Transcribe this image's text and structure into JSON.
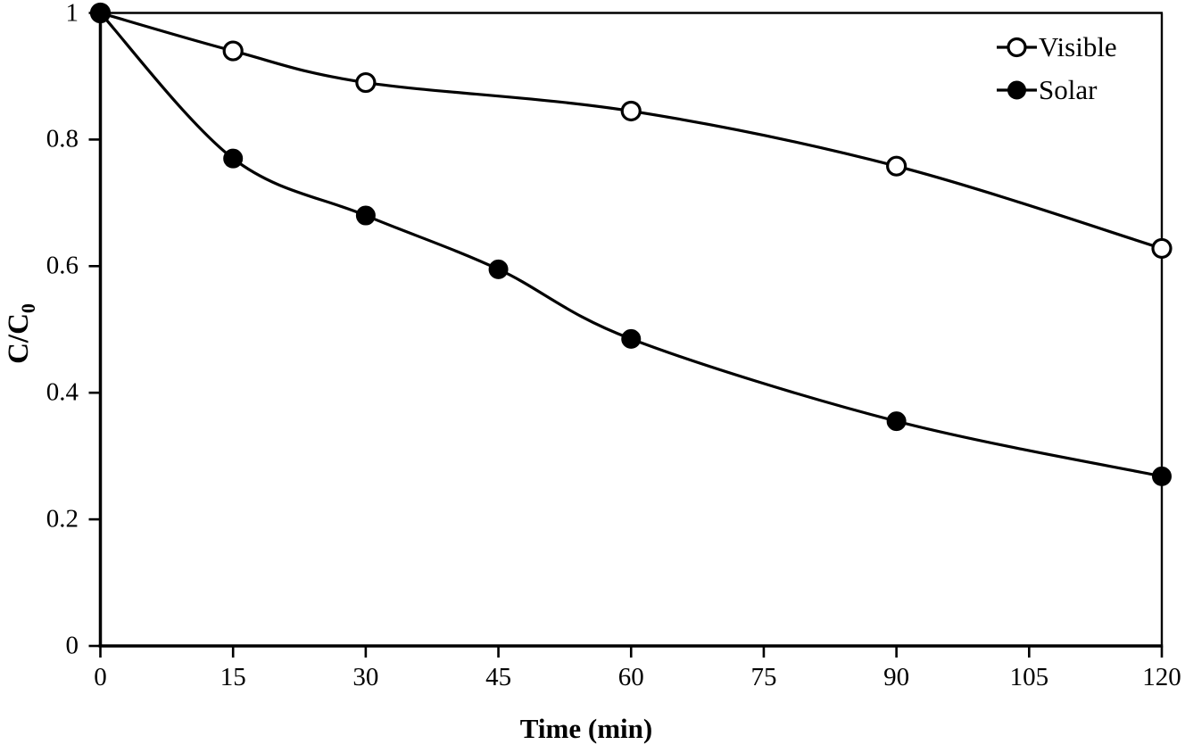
{
  "figure": {
    "background_color": "#ffffff",
    "line_color": "#000000",
    "text_color": "#000000"
  },
  "chart_data": {
    "type": "line",
    "title": "",
    "xlabel": "Time (min)",
    "ylabel": "C/C",
    "ylabel_subscript": "0",
    "xlim": [
      0,
      120
    ],
    "ylim": [
      0,
      1
    ],
    "x_ticks": [
      0,
      15,
      30,
      45,
      60,
      75,
      90,
      105,
      120
    ],
    "x_tick_labels": [
      "0",
      "15",
      "30",
      "45",
      "60",
      "75",
      "90",
      "105",
      "120"
    ],
    "y_ticks": [
      0,
      0.2,
      0.4,
      0.6,
      0.8,
      1
    ],
    "y_tick_labels": [
      "0",
      "0.2",
      "0.4",
      "0.6",
      "0.8",
      "1"
    ],
    "grid": false,
    "frame": true,
    "legend_position": "top-right-inside",
    "series": [
      {
        "name": "Visible",
        "marker": "open-circle",
        "line_style": "solid-smooth",
        "color": "#000000",
        "x": [
          0,
          15,
          30,
          60,
          90,
          120
        ],
        "values": [
          1.0,
          0.94,
          0.89,
          0.845,
          0.758,
          0.628
        ]
      },
      {
        "name": "Solar",
        "marker": "filled-circle",
        "line_style": "solid-smooth",
        "color": "#000000",
        "x": [
          0,
          15,
          30,
          45,
          60,
          90,
          120
        ],
        "values": [
          1.0,
          0.77,
          0.68,
          0.595,
          0.485,
          0.355,
          0.268
        ]
      }
    ]
  }
}
